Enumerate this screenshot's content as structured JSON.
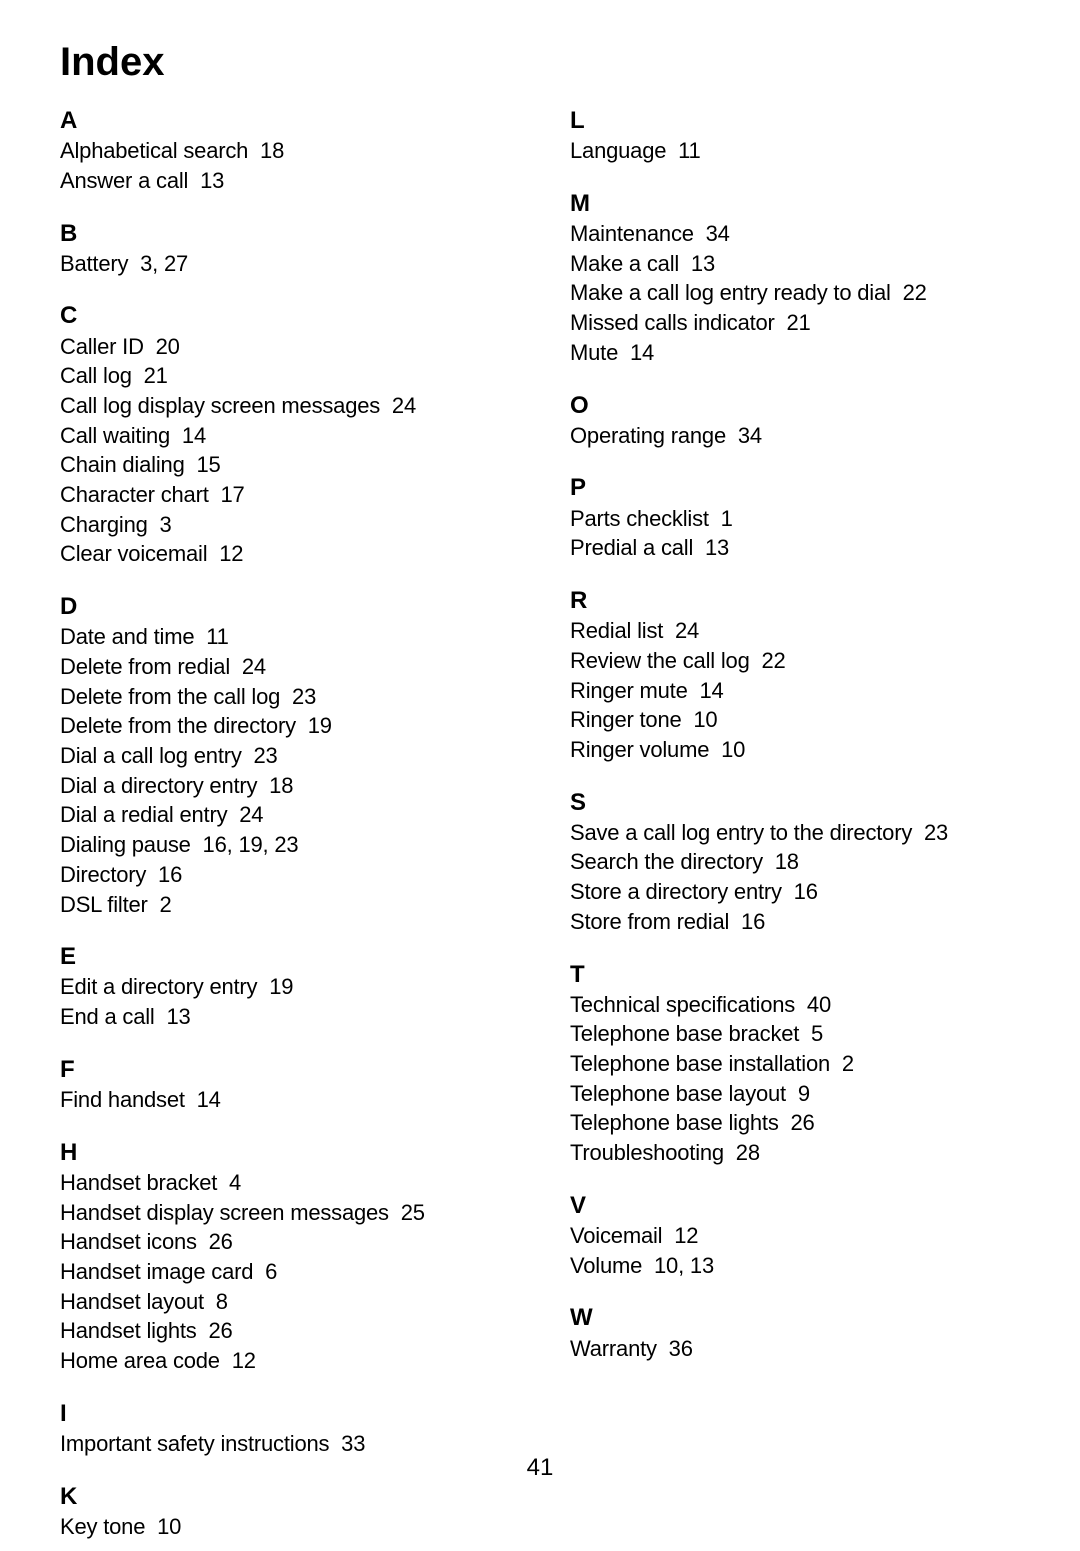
{
  "title": "Index",
  "page_number": "41",
  "columns": [
    {
      "sections": [
        {
          "letter": "A",
          "entries": [
            {
              "t": "Alphabetical search",
              "p": "18"
            },
            {
              "t": "Answer a call",
              "p": "13"
            }
          ]
        },
        {
          "letter": "B",
          "entries": [
            {
              "t": "Battery",
              "p": "3, 27"
            }
          ]
        },
        {
          "letter": "C",
          "entries": [
            {
              "t": "Caller ID",
              "p": "20"
            },
            {
              "t": "Call log",
              "p": "21"
            },
            {
              "t": "Call log display screen messages",
              "p": "24"
            },
            {
              "t": "Call waiting",
              "p": "14"
            },
            {
              "t": "Chain dialing",
              "p": "15"
            },
            {
              "t": "Character chart",
              "p": "17"
            },
            {
              "t": "Charging",
              "p": "3"
            },
            {
              "t": "Clear voicemail",
              "p": "12"
            }
          ]
        },
        {
          "letter": "D",
          "entries": [
            {
              "t": "Date and time",
              "p": "11"
            },
            {
              "t": "Delete from redial",
              "p": "24"
            },
            {
              "t": "Delete from the call log",
              "p": "23"
            },
            {
              "t": "Delete from the directory",
              "p": "19"
            },
            {
              "t": "Dial a call log entry",
              "p": "23"
            },
            {
              "t": "Dial a directory entry",
              "p": "18"
            },
            {
              "t": "Dial a redial entry",
              "p": "24"
            },
            {
              "t": "Dialing pause",
              "p": "16, 19, 23"
            },
            {
              "t": "Directory",
              "p": "16"
            },
            {
              "t": "DSL filter",
              "p": "2"
            }
          ]
        },
        {
          "letter": "E",
          "entries": [
            {
              "t": "Edit a directory entry",
              "p": "19"
            },
            {
              "t": "End a call",
              "p": "13"
            }
          ]
        },
        {
          "letter": "F",
          "entries": [
            {
              "t": "Find handset",
              "p": "14"
            }
          ]
        },
        {
          "letter": "H",
          "entries": [
            {
              "t": "Handset bracket",
              "p": "4"
            },
            {
              "t": "Handset display screen messages",
              "p": "25"
            },
            {
              "t": "Handset icons",
              "p": "26"
            },
            {
              "t": "Handset image card",
              "p": "6"
            },
            {
              "t": "Handset layout",
              "p": "8"
            },
            {
              "t": "Handset lights",
              "p": "26"
            },
            {
              "t": "Home area code",
              "p": "12"
            }
          ]
        },
        {
          "letter": "I",
          "entries": [
            {
              "t": "Important safety instructions",
              "p": "33"
            }
          ]
        },
        {
          "letter": "K",
          "entries": [
            {
              "t": "Key tone",
              "p": "10"
            }
          ]
        }
      ]
    },
    {
      "sections": [
        {
          "letter": "L",
          "entries": [
            {
              "t": "Language",
              "p": "11"
            }
          ]
        },
        {
          "letter": "M",
          "entries": [
            {
              "t": "Maintenance",
              "p": "34"
            },
            {
              "t": "Make a call",
              "p": "13"
            },
            {
              "t": "Make a call log entry ready to dial",
              "p": "22"
            },
            {
              "t": "Missed calls indicator",
              "p": "21"
            },
            {
              "t": "Mute",
              "p": "14"
            }
          ]
        },
        {
          "letter": "O",
          "entries": [
            {
              "t": "Operating range",
              "p": "34"
            }
          ]
        },
        {
          "letter": "P",
          "entries": [
            {
              "t": "Parts checklist",
              "p": "1"
            },
            {
              "t": "Predial a call",
              "p": "13"
            }
          ]
        },
        {
          "letter": "R",
          "entries": [
            {
              "t": "Redial list",
              "p": "24"
            },
            {
              "t": "Review the call log",
              "p": "22"
            },
            {
              "t": "Ringer mute",
              "p": "14"
            },
            {
              "t": "Ringer tone",
              "p": "10"
            },
            {
              "t": "Ringer volume",
              "p": "10"
            }
          ]
        },
        {
          "letter": "S",
          "entries": [
            {
              "t": "Save a call log entry to the directory",
              "p": "23"
            },
            {
              "t": "Search the directory",
              "p": "18"
            },
            {
              "t": "Store a directory entry",
              "p": "16"
            },
            {
              "t": "Store from redial",
              "p": "16"
            }
          ]
        },
        {
          "letter": "T",
          "entries": [
            {
              "t": "Technical specifications",
              "p": "40"
            },
            {
              "t": "Telephone base bracket",
              "p": "5"
            },
            {
              "t": "Telephone base installation",
              "p": "2"
            },
            {
              "t": "Telephone base layout",
              "p": "9"
            },
            {
              "t": "Telephone base lights",
              "p": "26"
            },
            {
              "t": "Troubleshooting",
              "p": "28"
            }
          ]
        },
        {
          "letter": "V",
          "entries": [
            {
              "t": "Voicemail",
              "p": "12"
            },
            {
              "t": "Volume",
              "p": "10, 13"
            }
          ]
        },
        {
          "letter": "W",
          "entries": [
            {
              "t": "Warranty",
              "p": "36"
            }
          ]
        }
      ]
    }
  ]
}
